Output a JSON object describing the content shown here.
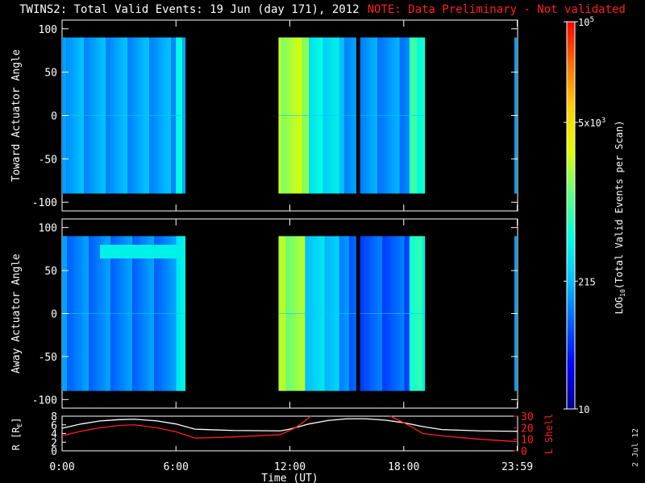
{
  "title": "TWINS2: Total Valid Events: 19 Jun (day 171), 2012",
  "note": "NOTE: Data Preliminary - Not validated",
  "datestamp": "2 Jul 12",
  "colorbar": {
    "label_main": "LOG",
    "label_sub": "10",
    "label_rest": "(Total Valid  Events per Scan)",
    "ticks": [
      {
        "base": "10",
        "exp": "5",
        "frac": 1.0
      },
      {
        "base": "5x10",
        "exp": "3",
        "frac": 0.74
      },
      {
        "base": "215",
        "exp": "",
        "frac": 0.33
      },
      {
        "base": "10",
        "exp": "",
        "frac": 0.0
      }
    ],
    "colors": [
      "#00008c",
      "#0000ff",
      "#0060ff",
      "#00c0ff",
      "#00ffe0",
      "#60ff80",
      "#e0ff00",
      "#ffd000",
      "#ff7000",
      "#ff0000"
    ]
  },
  "chart_data": [
    {
      "type": "heatmap",
      "panel": "top",
      "ylabel": "Toward Actuator Angle",
      "ylim": [
        -110,
        110
      ],
      "yticks": [
        100,
        50,
        0,
        -50,
        -100
      ],
      "x_range_hours": [
        0,
        24
      ],
      "data_range": [
        -90,
        90
      ],
      "segments": [
        {
          "start": 0.0,
          "end": 6.5,
          "level": 0.3
        },
        {
          "start": 6.0,
          "end": 6.3,
          "level": 0.44
        },
        {
          "start": 11.4,
          "end": 13.0,
          "level": 0.62
        },
        {
          "start": 13.0,
          "end": 14.6,
          "level": 0.4
        },
        {
          "start": 14.6,
          "end": 15.5,
          "level": 0.3
        },
        {
          "start": 15.7,
          "end": 18.3,
          "level": 0.28
        },
        {
          "start": 18.3,
          "end": 19.1,
          "level": 0.48
        }
      ]
    },
    {
      "type": "heatmap",
      "panel": "middle",
      "ylabel": "Away Actuator Angle",
      "ylim": [
        -110,
        110
      ],
      "yticks": [
        100,
        50,
        0,
        -50,
        -100
      ],
      "x_range_hours": [
        0,
        24
      ],
      "data_range": [
        -90,
        90
      ],
      "segments": [
        {
          "start": 0.0,
          "end": 6.5,
          "level": 0.26
        },
        {
          "start": 6.0,
          "end": 6.5,
          "level": 0.42
        },
        {
          "start": 11.4,
          "end": 12.8,
          "level": 0.6
        },
        {
          "start": 12.8,
          "end": 14.6,
          "level": 0.36
        },
        {
          "start": 14.6,
          "end": 15.5,
          "level": 0.25
        },
        {
          "start": 15.7,
          "end": 18.3,
          "level": 0.22
        },
        {
          "start": 18.3,
          "end": 19.1,
          "level": 0.46
        }
      ]
    },
    {
      "type": "line",
      "panel": "bottom",
      "xlabel": "Time (UT)",
      "xticks": [
        "0:00",
        "6:00",
        "12:00",
        "18:00",
        "23:59"
      ],
      "xtick_hours": [
        0,
        6,
        12,
        18,
        23.98
      ],
      "left_axis": {
        "label": "R [R",
        "label_sub": "E",
        "label_end": "]",
        "ylim": [
          0,
          8
        ],
        "ticks": [
          8,
          6,
          4,
          2,
          0
        ]
      },
      "right_axis": {
        "label": "L Shell",
        "ylim": [
          0,
          30
        ],
        "ticks": [
          30,
          20,
          10,
          0
        ]
      },
      "series": [
        {
          "axis": "left",
          "color": "#ffffff",
          "x": [
            0,
            1,
            2,
            3,
            3.8,
            5,
            6,
            7,
            9,
            11.5,
            12,
            13,
            14,
            15,
            16,
            17,
            18,
            19,
            20,
            22,
            24
          ],
          "y": [
            5.2,
            6.2,
            6.9,
            7.2,
            7.3,
            6.9,
            6.2,
            5.0,
            4.7,
            4.6,
            5.0,
            6.2,
            7.0,
            7.4,
            7.4,
            7.1,
            6.5,
            5.6,
            4.9,
            4.6,
            4.5
          ]
        },
        {
          "axis": "right",
          "color": "#ff2020",
          "x": [
            0,
            1,
            2,
            3,
            3.8,
            5,
            6,
            7,
            9,
            11.5,
            12.3,
            12.8,
            13.1
          ],
          "y": [
            13,
            17,
            20,
            22,
            22.5,
            20,
            16.5,
            11,
            12,
            14,
            20,
            26,
            30
          ]
        },
        {
          "axis": "right",
          "color": "#ff2020",
          "x": [
            17.3,
            17.8,
            18.5,
            19,
            20,
            22,
            24
          ],
          "y": [
            30,
            26,
            20,
            15,
            13,
            10,
            8
          ]
        }
      ]
    }
  ]
}
